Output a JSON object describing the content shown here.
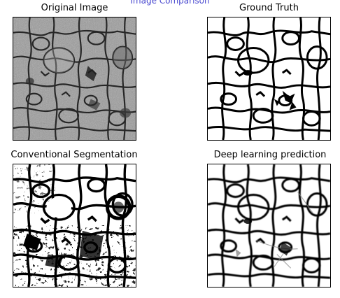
{
  "figure": {
    "suptitle": "Image Comparison",
    "panels": [
      {
        "title": "Original Image"
      },
      {
        "title": "Ground Truth"
      },
      {
        "title": "Conventional Segmentation"
      },
      {
        "title": "Deep learning prediction"
      }
    ]
  }
}
